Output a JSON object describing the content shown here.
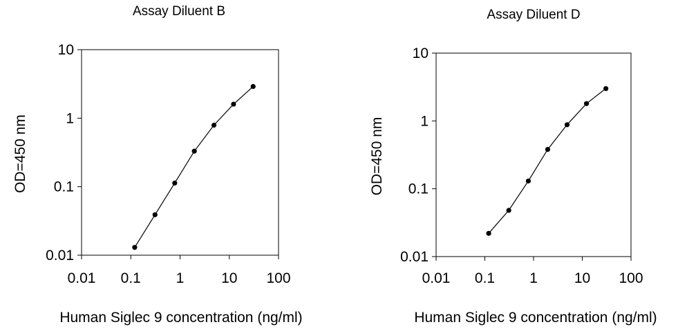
{
  "chart_data": [
    {
      "type": "line",
      "title": "Assay Diluent B",
      "xlabel": "Human Siglec 9  concentration (ng/ml)",
      "ylabel": "OD=450 nm",
      "xscale": "log",
      "yscale": "log",
      "xlim": [
        0.01,
        100
      ],
      "ylim": [
        0.01,
        10
      ],
      "xticks": [
        "0.01",
        "0.1",
        "1",
        "10",
        "100"
      ],
      "yticks": [
        "0.01",
        "0.1",
        "1",
        "10"
      ],
      "grid": false,
      "series": [
        {
          "x": [
            0.12,
            0.31,
            0.78,
            1.95,
            4.88,
            12.2,
            30.5
          ],
          "y": [
            0.013,
            0.039,
            0.113,
            0.33,
            0.79,
            1.6,
            2.9
          ]
        }
      ]
    },
    {
      "type": "line",
      "title": "Assay Diluent D",
      "xlabel": "Human Siglec 9  concentration (ng/ml)",
      "ylabel": "OD=450 nm",
      "xscale": "log",
      "yscale": "log",
      "xlim": [
        0.01,
        100
      ],
      "ylim": [
        0.01,
        10
      ],
      "xticks": [
        "0.01",
        "0.1",
        "1",
        "10",
        "100"
      ],
      "yticks": [
        "0.01",
        "0.1",
        "1",
        "10"
      ],
      "grid": false,
      "series": [
        {
          "x": [
            0.12,
            0.31,
            0.78,
            1.95,
            4.88,
            12.2,
            30.5
          ],
          "y": [
            0.022,
            0.048,
            0.13,
            0.38,
            0.88,
            1.8,
            3.0
          ]
        }
      ]
    }
  ]
}
